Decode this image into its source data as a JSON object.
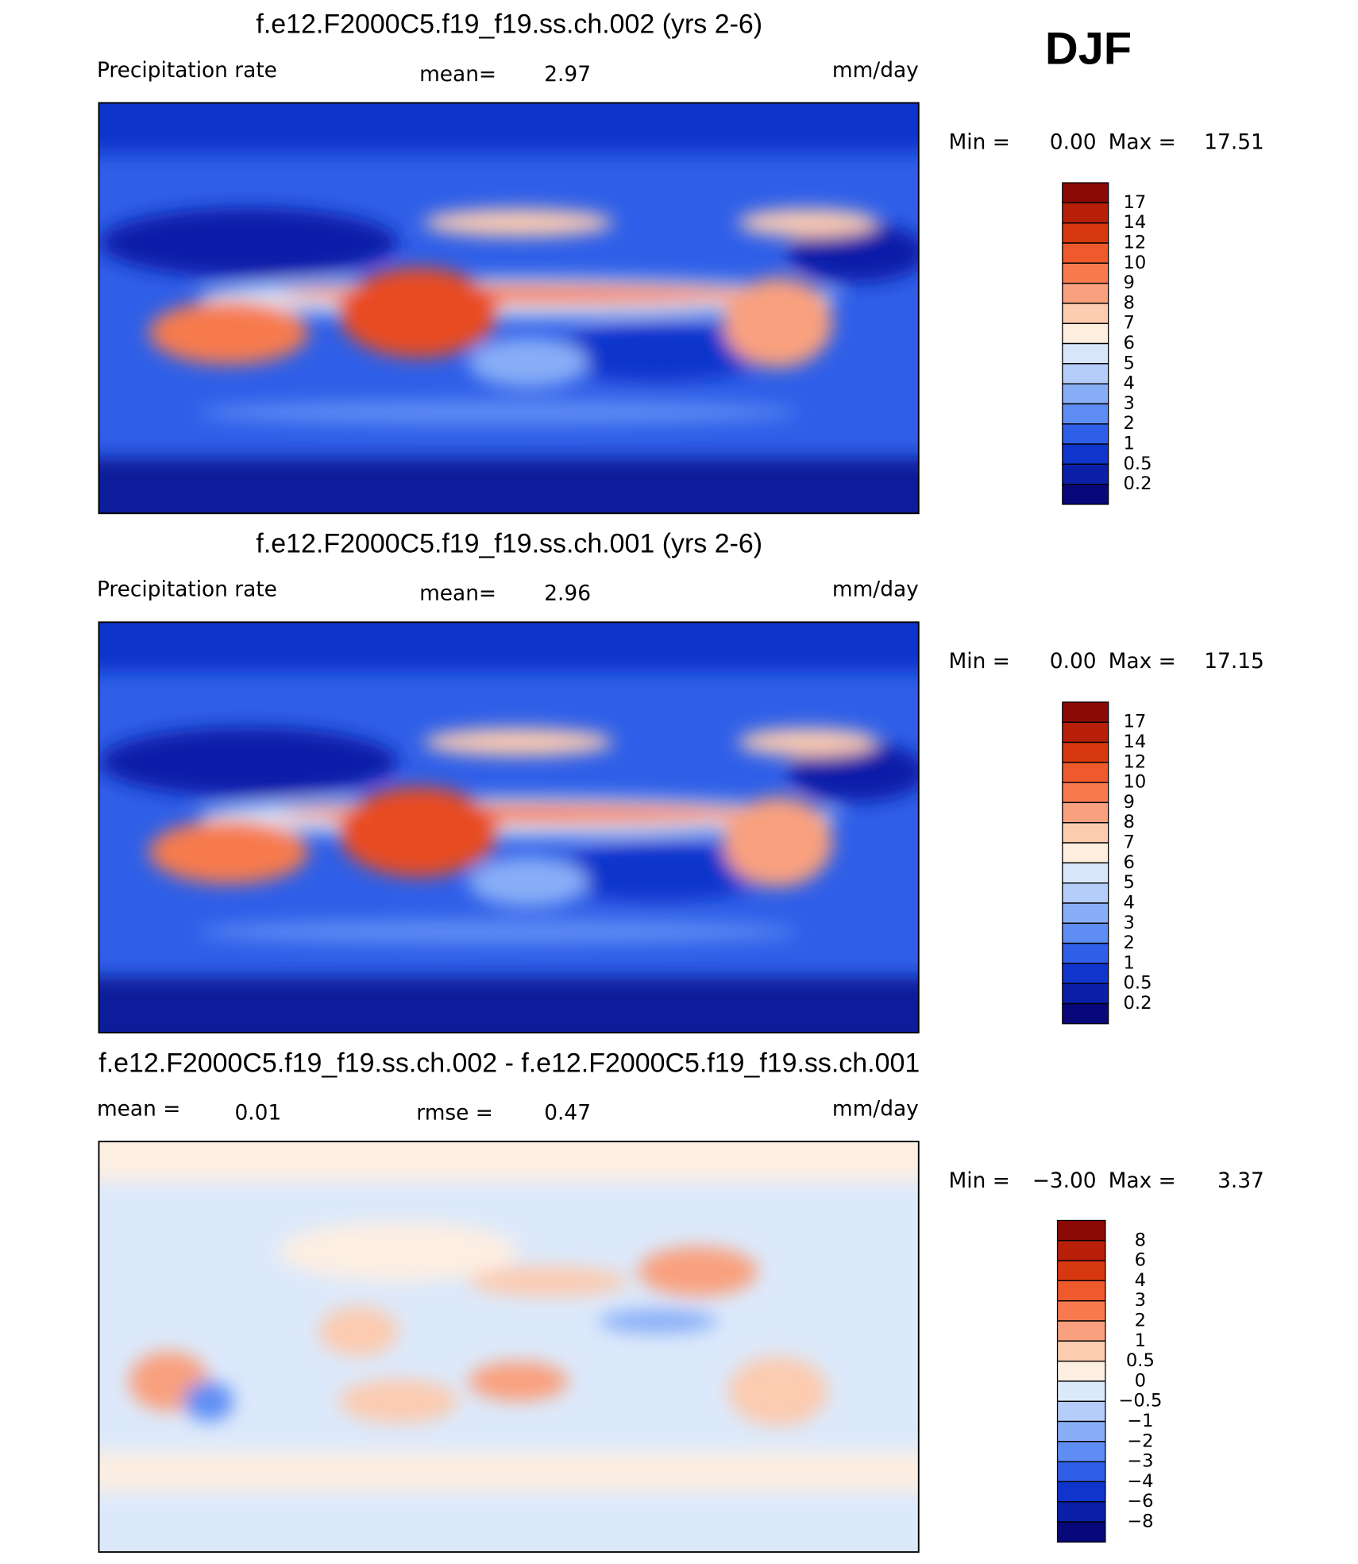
{
  "season": "DJF",
  "chart_data": [
    {
      "type": "contour-map",
      "title": "f.e12.F2000C5.f19_f19.ss.ch.002 (yrs 2-6)",
      "left_label": "Precipitation rate",
      "stat_label": "mean=",
      "stat": 2.97,
      "units": "mm/day",
      "min_label": "Min =",
      "min": {
        "value": 0,
        "label": "0.00"
      },
      "max_label": "Max =",
      "max": 17.51,
      "levels": [
        17,
        14,
        12,
        10,
        9,
        8,
        7,
        6,
        5,
        4,
        3,
        2,
        1,
        0.5,
        0.2
      ],
      "colors": [
        "#8c0a05",
        "#b8200a",
        "#d8380f",
        "#ee5a2c",
        "#f77a4e",
        "#f9a07e",
        "#fccbb0",
        "#fdeedd",
        "#d8e6fb",
        "#b4cdf9",
        "#88aef7",
        "#5e8ef4",
        "#2f5fe8",
        "#0f35cc",
        "#0b1fa8",
        "#08087a"
      ]
    },
    {
      "type": "contour-map",
      "title": "f.e12.F2000C5.f19_f19.ss.ch.001 (yrs 2-6)",
      "left_label": "Precipitation rate",
      "stat_label": "mean=",
      "stat": 2.96,
      "units": "mm/day",
      "min_label": "Min =",
      "min": {
        "value": 0,
        "label": "0.00"
      },
      "max_label": "Max =",
      "max": 17.15,
      "levels": [
        17,
        14,
        12,
        10,
        9,
        8,
        7,
        6,
        5,
        4,
        3,
        2,
        1,
        0.5,
        0.2
      ],
      "colors": [
        "#8c0a05",
        "#b8200a",
        "#d8380f",
        "#ee5a2c",
        "#f77a4e",
        "#f9a07e",
        "#fccbb0",
        "#fdeedd",
        "#d8e6fb",
        "#b4cdf9",
        "#88aef7",
        "#5e8ef4",
        "#2f5fe8",
        "#0f35cc",
        "#0b1fa8",
        "#08087a"
      ]
    },
    {
      "type": "contour-map",
      "title": "f.e12.F2000C5.f19_f19.ss.ch.002 - f.e12.F2000C5.f19_f19.ss.ch.001",
      "left_label": "mean =",
      "left_value": 0.01,
      "stat_label": "rmse =",
      "stat": 0.47,
      "units": "mm/day",
      "min_label": "Min =",
      "min": {
        "value": -3,
        "label": "−3.00"
      },
      "max_label": "Max =",
      "max": 3.37,
      "levels": [
        8,
        6,
        4,
        3,
        2,
        1,
        0.5,
        0,
        {
          "value": -0.5,
          "label": "−0.5"
        },
        {
          "value": -1,
          "label": "−1"
        },
        {
          "value": -2,
          "label": "−2"
        },
        {
          "value": -3,
          "label": "−3"
        },
        {
          "value": -4,
          "label": "−4"
        },
        {
          "value": -6,
          "label": "−6"
        },
        {
          "value": -8,
          "label": "−8"
        }
      ],
      "colors": [
        "#8c0a05",
        "#b8200a",
        "#d8380f",
        "#ee5a2c",
        "#f77a4e",
        "#f9a07e",
        "#fccbb0",
        "#fdeee2",
        "#dce9fb",
        "#b4cdf9",
        "#88aef7",
        "#5e8ef4",
        "#2f5fe8",
        "#0f35cc",
        "#0b1fa8",
        "#08087a"
      ]
    }
  ]
}
